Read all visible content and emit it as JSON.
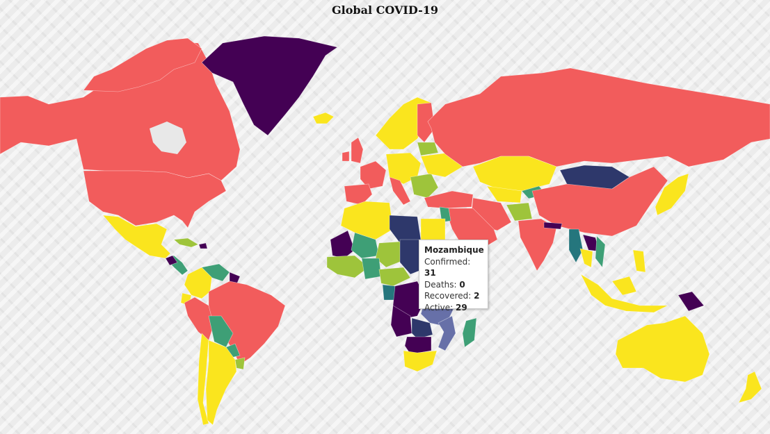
{
  "title": "Global COVID-19",
  "colors": {
    "red": "#f25c5c",
    "yellow": "#fae51e",
    "dark_purple": "#440154",
    "navy": "#2e386b",
    "teal_dark": "#25767d",
    "green": "#3e9f76",
    "olive": "#9ec43b",
    "slate": "#6770a8"
  },
  "tooltip": {
    "country": "Mozambique",
    "confirmed_label": "Confirmed:",
    "confirmed": "31",
    "deaths_label": "Deaths:",
    "deaths": "0",
    "recovered_label": "Recovered:",
    "recovered": "2",
    "active_label": "Active:",
    "active": "29"
  }
}
